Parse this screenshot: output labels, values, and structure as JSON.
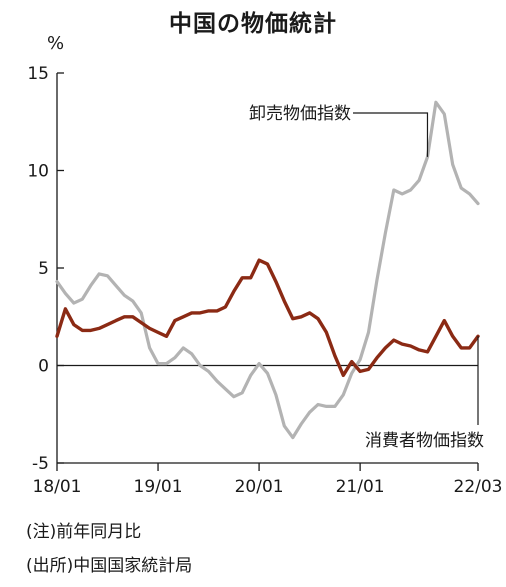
{
  "title": "中国の物価統計",
  "unit": "%",
  "notes": [
    "(注)前年同月比",
    "(出所)中国国家統計局"
  ],
  "colors": {
    "wholesale": "#b3b3b3",
    "consumer": "#8b2a14",
    "axis": "#1a1a1a"
  },
  "chart_data": {
    "type": "line",
    "title": "中国の物価統計",
    "ylabel": "%",
    "ylim": [
      -5,
      15
    ],
    "yticks": [
      -5,
      0,
      5,
      10,
      15
    ],
    "x_start": "2018-01",
    "x_end": "2022-03",
    "xtick_labels": [
      "18/01",
      "19/01",
      "20/01",
      "21/01",
      "22/03"
    ],
    "xticks": [
      "2018-01",
      "2019-01",
      "2020-01",
      "2021-01",
      "2022-03"
    ],
    "grid": false,
    "series": [
      {
        "name": "卸売物価指数",
        "key": "wholesale",
        "values": [
          4.3,
          3.7,
          3.2,
          3.4,
          4.1,
          4.7,
          4.6,
          4.1,
          3.6,
          3.3,
          2.7,
          0.9,
          0.1,
          0.1,
          0.4,
          0.9,
          0.6,
          0.0,
          -0.3,
          -0.8,
          -1.2,
          -1.6,
          -1.4,
          -0.5,
          0.1,
          -0.4,
          -1.5,
          -3.1,
          -3.7,
          -3.0,
          -2.4,
          -2.0,
          -2.1,
          -2.1,
          -1.5,
          -0.4,
          0.3,
          1.7,
          4.4,
          6.8,
          9.0,
          8.8,
          9.0,
          9.5,
          10.7,
          13.5,
          12.9,
          10.3,
          9.1,
          8.8,
          8.3
        ]
      },
      {
        "name": "消費者物価指数",
        "key": "consumer",
        "values": [
          1.5,
          2.9,
          2.1,
          1.8,
          1.8,
          1.9,
          2.1,
          2.3,
          2.5,
          2.5,
          2.2,
          1.9,
          1.7,
          1.5,
          2.3,
          2.5,
          2.7,
          2.7,
          2.8,
          2.8,
          3.0,
          3.8,
          4.5,
          4.5,
          5.4,
          5.2,
          4.3,
          3.3,
          2.4,
          2.5,
          2.7,
          2.4,
          1.7,
          0.5,
          -0.5,
          0.2,
          -0.3,
          -0.2,
          0.4,
          0.9,
          1.3,
          1.1,
          1.0,
          0.8,
          0.7,
          1.5,
          2.3,
          1.5,
          0.9,
          0.9,
          1.5
        ]
      }
    ],
    "annotations": [
      {
        "text": "卸売物価指数",
        "series": "wholesale"
      },
      {
        "text": "消費者物価指数",
        "series": "consumer"
      }
    ]
  }
}
